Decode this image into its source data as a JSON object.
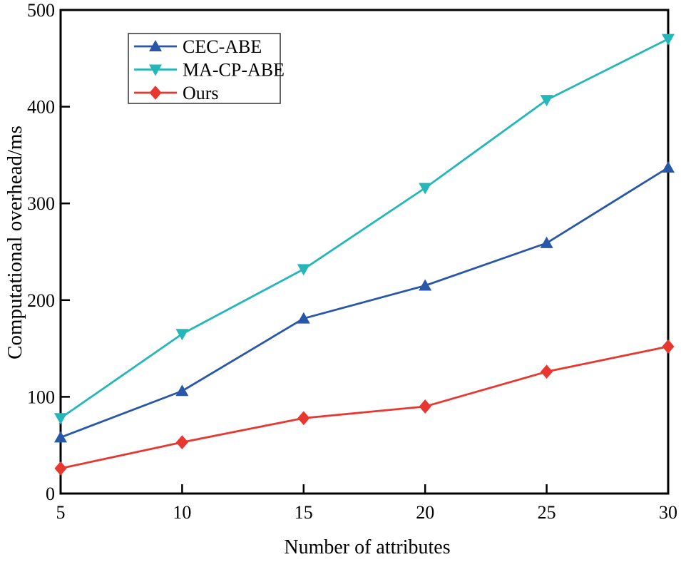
{
  "chart_data": {
    "type": "line",
    "title": "",
    "xlabel": "Number of attributes",
    "ylabel": "Computational overhead/ms",
    "x": [
      5,
      10,
      15,
      20,
      25,
      30
    ],
    "xlim": [
      5,
      30
    ],
    "ylim": [
      0,
      500
    ],
    "xticks": [
      5,
      10,
      15,
      20,
      25,
      30
    ],
    "yticks": [
      0,
      100,
      200,
      300,
      400,
      500
    ],
    "grid": false,
    "legend_position": "upper-left-inside",
    "axis_color": "#000000",
    "series": [
      {
        "name": "CEC-ABE",
        "color": "#2857a8",
        "marker": "triangle-up",
        "values": [
          58,
          106,
          181,
          215,
          259,
          337
        ]
      },
      {
        "name": "MA-CP-ABE",
        "color": "#25b6b9",
        "marker": "triangle-down",
        "values": [
          78,
          165,
          232,
          316,
          407,
          470
        ]
      },
      {
        "name": "Ours",
        "color": "#e8372f",
        "marker": "diamond",
        "values": [
          26,
          53,
          78,
          90,
          126,
          152
        ]
      }
    ]
  }
}
